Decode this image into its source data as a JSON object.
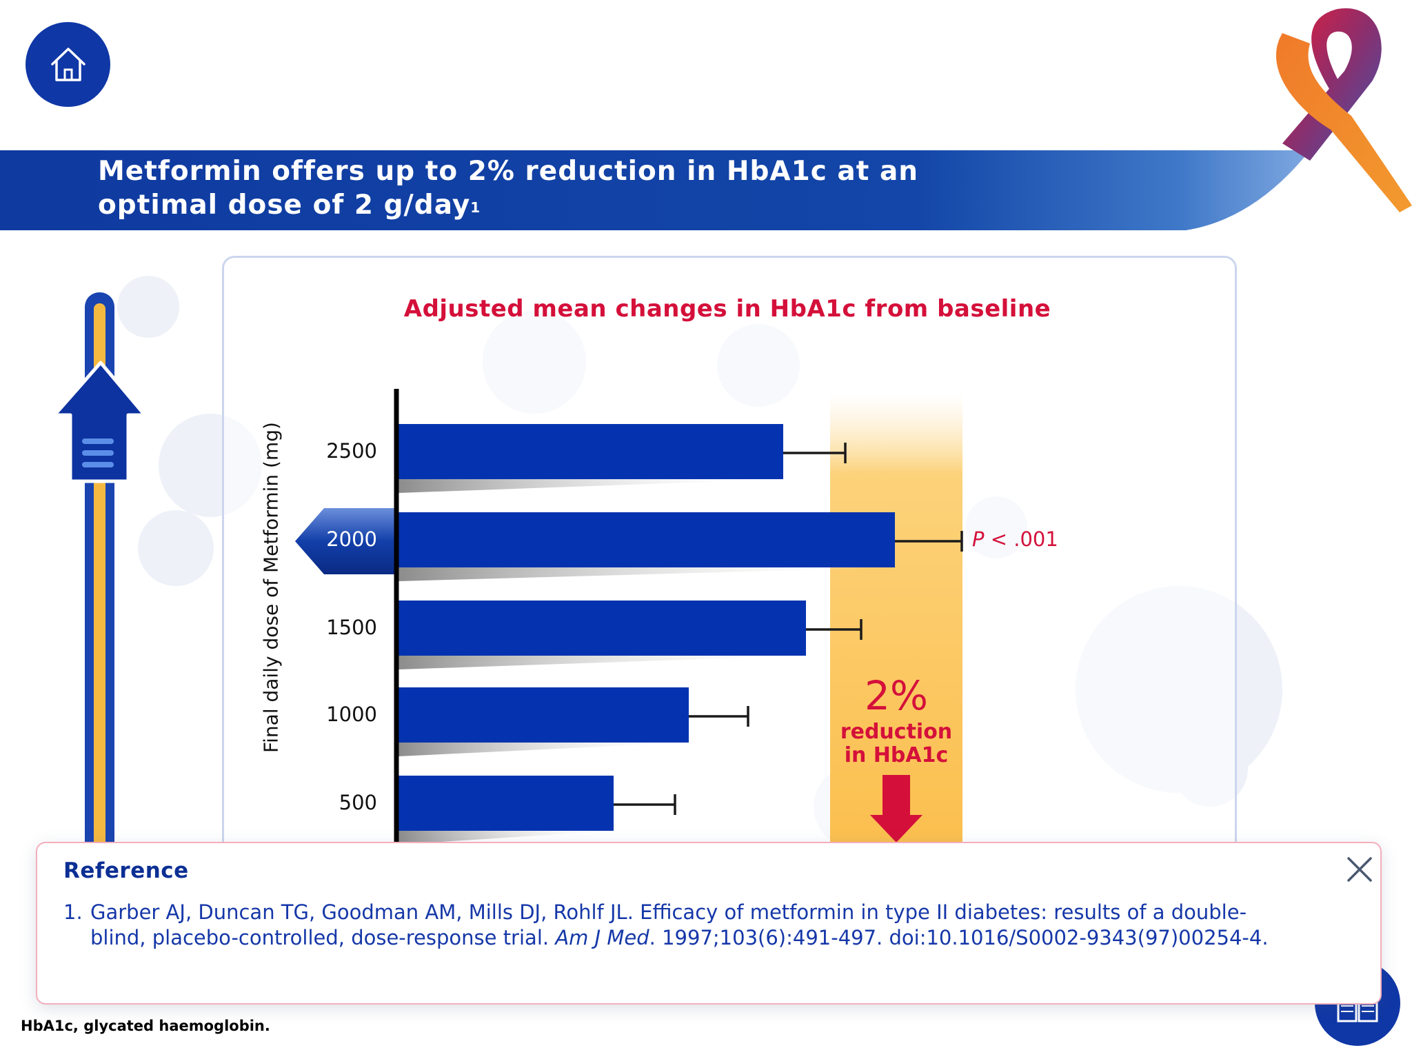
{
  "header": {
    "title_line1": "Metformin offers up to 2% reduction in HbA1c at an",
    "title_line2": "optimal dose of 2 g/day",
    "title_sup": "1"
  },
  "colors": {
    "brand_blue": "#0f37a6",
    "bar_blue": "#0533b0",
    "accent_red": "#d4103a",
    "highlight_orange": "#fbbf4e"
  },
  "icons": {
    "home": "home-icon",
    "close": "close-icon",
    "book": "book-icon",
    "up_arrow": "up-arrow-icon",
    "down_arrow": "down-arrow-icon",
    "ribbon": "awareness-ribbon-icon"
  },
  "chart_data": {
    "type": "bar",
    "orientation": "horizontal",
    "title": "Adjusted mean changes in HbA1c from baseline",
    "ylabel": "Final daily dose of Metformin (mg)",
    "categories": [
      "2500",
      "2000",
      "1500",
      "1000",
      "500"
    ],
    "selected_category": "2000",
    "grid": false,
    "annotations": {
      "pvalue_p": "P",
      "pvalue_rest": " < .001",
      "reduction_pct": "2%",
      "reduction_line1": "reduction",
      "reduction_line2": "in HbA1c"
    }
  },
  "reference": {
    "title": "Reference",
    "number": "1.",
    "text_before_journal": "Garber AJ, Duncan TG, Goodman AM, Mills DJ, Rohlf JL. Efficacy of metformin in type II diabetes: results of a double-blind, placebo-controlled, dose-response trial. ",
    "journal": "Am J Med",
    "text_after_journal": ". 1997;103(6):491-497. doi:10.1016/S0002-9343(97)00254-4."
  },
  "footnote": "HbA1c, glycated haemoglobin."
}
